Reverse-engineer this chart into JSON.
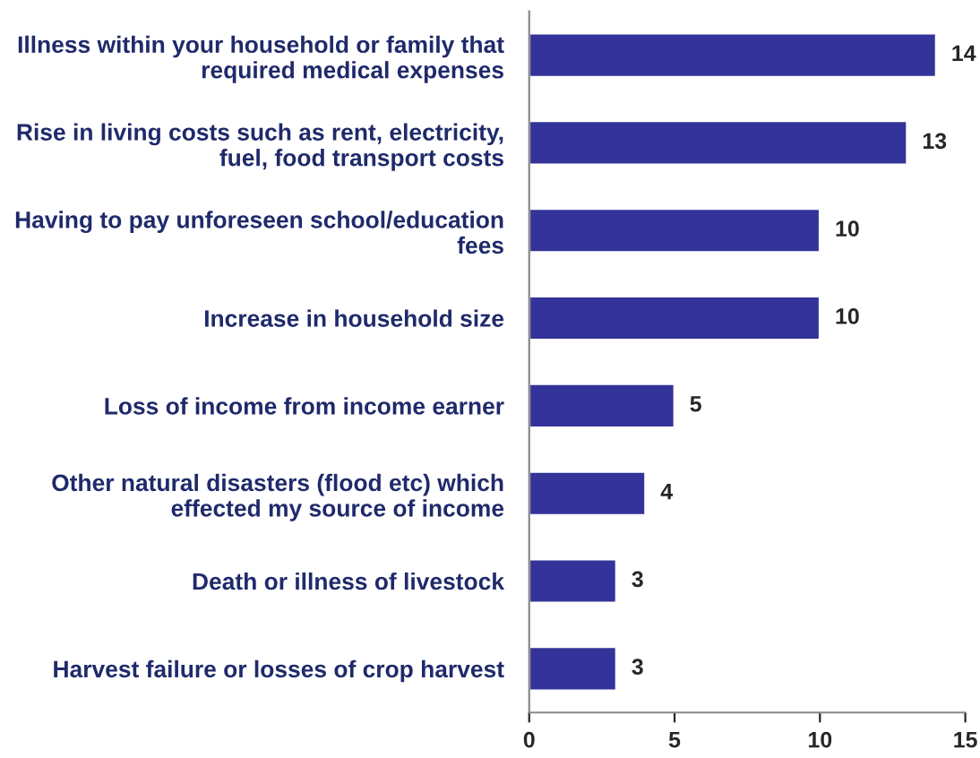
{
  "chart_data": {
    "type": "bar",
    "orientation": "horizontal",
    "categories": [
      "Illness within your household or family that\nrequired medical expenses",
      "Rise in living costs such as rent, electricity,\nfuel, food transport costs",
      "Having to pay unforeseen school/education\nfees",
      "Increase in household size",
      "Loss of income from income earner",
      "Other natural disasters (flood etc) which\neffected my source of income",
      "Death or illness of livestock",
      "Harvest failure or losses of crop harvest"
    ],
    "values": [
      14,
      13,
      10,
      10,
      5,
      4,
      3,
      3
    ],
    "color": "#333399",
    "xlim": [
      0,
      15
    ],
    "xticks": [
      0,
      5,
      10,
      15
    ],
    "data_labels": true,
    "grid": false,
    "legend": false
  }
}
